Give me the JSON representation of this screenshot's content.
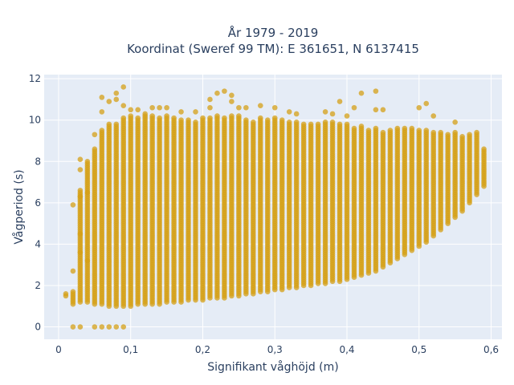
{
  "chart_data": {
    "type": "scatter",
    "title": "År 1979 - 2019",
    "subtitle": "Koordinat (Sweref 99 TM): E 361651, N 6137415",
    "xlabel": "Signifikant våghöjd (m)",
    "ylabel": "Vågperiod (s)",
    "xlim": [
      -0.02,
      0.615
    ],
    "ylim": [
      -0.6,
      12.2
    ],
    "x_ticks": [
      0,
      0.1,
      0.2,
      0.3,
      0.4,
      0.5,
      0.6
    ],
    "x_tick_labels": [
      "0",
      "0,1",
      "0,2",
      "0,3",
      "0,4",
      "0,5",
      "0,6"
    ],
    "y_ticks": [
      0,
      2,
      4,
      6,
      8,
      10,
      12
    ],
    "y_tick_labels": [
      "0",
      "2",
      "4",
      "6",
      "8",
      "10",
      "12"
    ],
    "grid": true,
    "marker_color": "#D4A017",
    "plot_bg": "#E5ECF6",
    "x_bins": [
      0.01,
      0.02,
      0.03,
      0.04,
      0.05,
      0.06,
      0.07,
      0.08,
      0.09,
      0.1,
      0.11,
      0.12,
      0.13,
      0.14,
      0.15,
      0.16,
      0.17,
      0.18,
      0.19,
      0.2,
      0.21,
      0.22,
      0.23,
      0.24,
      0.25,
      0.26,
      0.27,
      0.28,
      0.29,
      0.3,
      0.31,
      0.32,
      0.33,
      0.34,
      0.35,
      0.36,
      0.37,
      0.38,
      0.39,
      0.4,
      0.41,
      0.42,
      0.43,
      0.44,
      0.45,
      0.46,
      0.47,
      0.48,
      0.49,
      0.5,
      0.51,
      0.52,
      0.53,
      0.54,
      0.55,
      0.56,
      0.57,
      0.58,
      0.59
    ],
    "y_min": [
      1.5,
      1.1,
      1.2,
      1.2,
      1.1,
      1.1,
      1.0,
      1.0,
      1.0,
      1.0,
      1.1,
      1.1,
      1.1,
      1.1,
      1.2,
      1.2,
      1.2,
      1.3,
      1.3,
      1.3,
      1.4,
      1.4,
      1.4,
      1.5,
      1.5,
      1.6,
      1.6,
      1.7,
      1.7,
      1.8,
      1.8,
      1.9,
      1.9,
      2.0,
      2.0,
      2.1,
      2.1,
      2.2,
      2.2,
      2.3,
      2.4,
      2.5,
      2.6,
      2.7,
      2.9,
      3.1,
      3.3,
      3.5,
      3.7,
      3.9,
      4.1,
      4.4,
      4.7,
      5.0,
      5.3,
      5.6,
      6.0,
      6.4,
      6.8
    ],
    "y_max": [
      1.6,
      1.7,
      6.6,
      8.0,
      8.6,
      9.5,
      9.8,
      9.8,
      10.1,
      10.2,
      10.1,
      10.3,
      10.2,
      10.1,
      10.2,
      10.1,
      10.0,
      10.0,
      9.9,
      10.1,
      10.1,
      10.2,
      10.1,
      10.2,
      10.2,
      10.0,
      9.9,
      10.1,
      10.0,
      10.1,
      10.0,
      9.9,
      9.9,
      9.8,
      9.8,
      9.8,
      9.9,
      9.9,
      9.8,
      9.8,
      9.6,
      9.7,
      9.5,
      9.6,
      9.4,
      9.5,
      9.6,
      9.6,
      9.6,
      9.5,
      9.5,
      9.4,
      9.4,
      9.3,
      9.4,
      9.2,
      9.3,
      9.4,
      8.6
    ],
    "zero_row_x": [
      0.02,
      0.03,
      0.05,
      0.06,
      0.07,
      0.08,
      0.09
    ],
    "outliers": [
      {
        "x": 0.02,
        "y": 5.9
      },
      {
        "x": 0.02,
        "y": 2.7
      },
      {
        "x": 0.03,
        "y": 8.1
      },
      {
        "x": 0.03,
        "y": 7.6
      },
      {
        "x": 0.03,
        "y": 6.3
      },
      {
        "x": 0.03,
        "y": 4.5
      },
      {
        "x": 0.03,
        "y": 3.6
      },
      {
        "x": 0.04,
        "y": 6.5
      },
      {
        "x": 0.04,
        "y": 3.2
      },
      {
        "x": 0.05,
        "y": 9.3
      },
      {
        "x": 0.06,
        "y": 11.1
      },
      {
        "x": 0.06,
        "y": 10.4
      },
      {
        "x": 0.07,
        "y": 10.9
      },
      {
        "x": 0.08,
        "y": 11.3
      },
      {
        "x": 0.08,
        "y": 11.0
      },
      {
        "x": 0.09,
        "y": 11.6
      },
      {
        "x": 0.09,
        "y": 10.7
      },
      {
        "x": 0.1,
        "y": 10.5
      },
      {
        "x": 0.11,
        "y": 10.5
      },
      {
        "x": 0.13,
        "y": 10.6
      },
      {
        "x": 0.14,
        "y": 10.6
      },
      {
        "x": 0.15,
        "y": 10.6
      },
      {
        "x": 0.17,
        "y": 10.4
      },
      {
        "x": 0.19,
        "y": 10.4
      },
      {
        "x": 0.21,
        "y": 10.6
      },
      {
        "x": 0.21,
        "y": 11.0
      },
      {
        "x": 0.22,
        "y": 11.3
      },
      {
        "x": 0.23,
        "y": 11.4
      },
      {
        "x": 0.24,
        "y": 11.2
      },
      {
        "x": 0.24,
        "y": 10.9
      },
      {
        "x": 0.25,
        "y": 10.6
      },
      {
        "x": 0.26,
        "y": 10.6
      },
      {
        "x": 0.28,
        "y": 10.7
      },
      {
        "x": 0.3,
        "y": 10.6
      },
      {
        "x": 0.32,
        "y": 10.4
      },
      {
        "x": 0.33,
        "y": 10.3
      },
      {
        "x": 0.37,
        "y": 10.4
      },
      {
        "x": 0.38,
        "y": 10.3
      },
      {
        "x": 0.39,
        "y": 10.9
      },
      {
        "x": 0.4,
        "y": 10.2
      },
      {
        "x": 0.41,
        "y": 10.6
      },
      {
        "x": 0.42,
        "y": 11.3
      },
      {
        "x": 0.44,
        "y": 11.4
      },
      {
        "x": 0.44,
        "y": 10.5
      },
      {
        "x": 0.45,
        "y": 10.5
      },
      {
        "x": 0.5,
        "y": 10.6
      },
      {
        "x": 0.51,
        "y": 10.8
      },
      {
        "x": 0.52,
        "y": 10.2
      },
      {
        "x": 0.55,
        "y": 9.9
      }
    ]
  }
}
